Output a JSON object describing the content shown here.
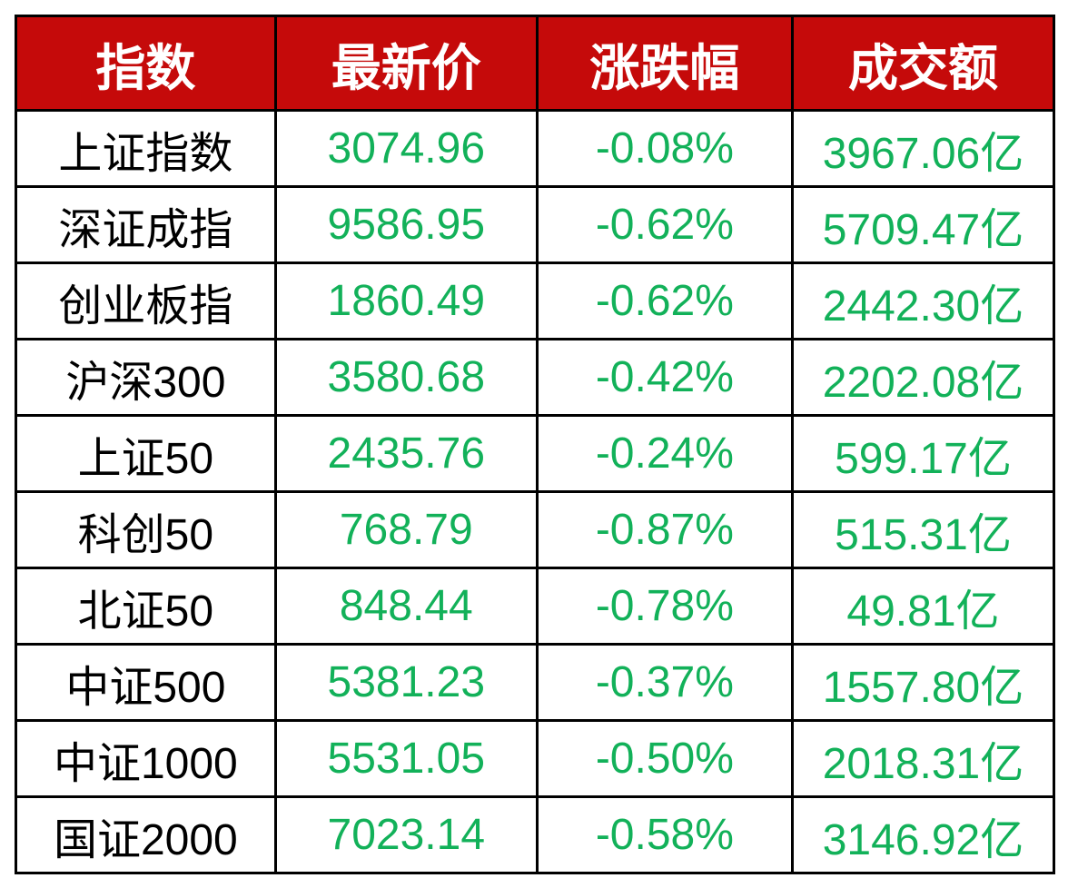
{
  "colors": {
    "header_bg": "#C50A0A",
    "header_text": "#FFFFFF",
    "value_green": "#12B159",
    "name_text": "#000000",
    "grid_border": "#000000",
    "page_bg": "#FFFFFF"
  },
  "table": {
    "headers": [
      "指数",
      "最新价",
      "涨跌幅",
      "成交额"
    ],
    "rows": [
      {
        "name": "上证指数",
        "price": "3074.96",
        "change": "-0.08%",
        "turnover": "3967.06亿"
      },
      {
        "name": "深证成指",
        "price": "9586.95",
        "change": "-0.62%",
        "turnover": "5709.47亿"
      },
      {
        "name": "创业板指",
        "price": "1860.49",
        "change": "-0.62%",
        "turnover": "2442.30亿"
      },
      {
        "name": "沪深300",
        "price": "3580.68",
        "change": "-0.42%",
        "turnover": "2202.08亿"
      },
      {
        "name": "上证50",
        "price": "2435.76",
        "change": "-0.24%",
        "turnover": "599.17亿"
      },
      {
        "name": "科创50",
        "price": "768.79",
        "change": "-0.87%",
        "turnover": "515.31亿"
      },
      {
        "name": "北证50",
        "price": "848.44",
        "change": "-0.78%",
        "turnover": "49.81亿"
      },
      {
        "name": "中证500",
        "price": "5381.23",
        "change": "-0.37%",
        "turnover": "1557.80亿"
      },
      {
        "name": "中证1000",
        "price": "5531.05",
        "change": "-0.50%",
        "turnover": "2018.31亿"
      },
      {
        "name": "国证2000",
        "price": "7023.14",
        "change": "-0.58%",
        "turnover": "3146.92亿"
      }
    ]
  },
  "chart_data": {
    "type": "table",
    "title": "",
    "columns": [
      "指数",
      "最新价",
      "涨跌幅",
      "成交额"
    ],
    "rows": [
      [
        "上证指数",
        "3074.96",
        "-0.08%",
        "3967.06亿"
      ],
      [
        "深证成指",
        "9586.95",
        "-0.62%",
        "5709.47亿"
      ],
      [
        "创业板指",
        "1860.49",
        "-0.62%",
        "2442.30亿"
      ],
      [
        "沪深300",
        "3580.68",
        "-0.42%",
        "2202.08亿"
      ],
      [
        "上证50",
        "2435.76",
        "-0.24%",
        "599.17亿"
      ],
      [
        "科创50",
        "768.79",
        "-0.87%",
        "515.31亿"
      ],
      [
        "北证50",
        "848.44",
        "-0.78%",
        "49.81亿"
      ],
      [
        "中证500",
        "5381.23",
        "-0.37%",
        "1557.80亿"
      ],
      [
        "中证1000",
        "5531.05",
        "-0.50%",
        "2018.31亿"
      ],
      [
        "国证2000",
        "7023.14",
        "-0.58%",
        "3146.92亿"
      ]
    ],
    "layout_hints": {
      "header_style": "red background, white bold text",
      "value_color": "green",
      "grid": "black 3px borders",
      "alignment": "center"
    }
  }
}
